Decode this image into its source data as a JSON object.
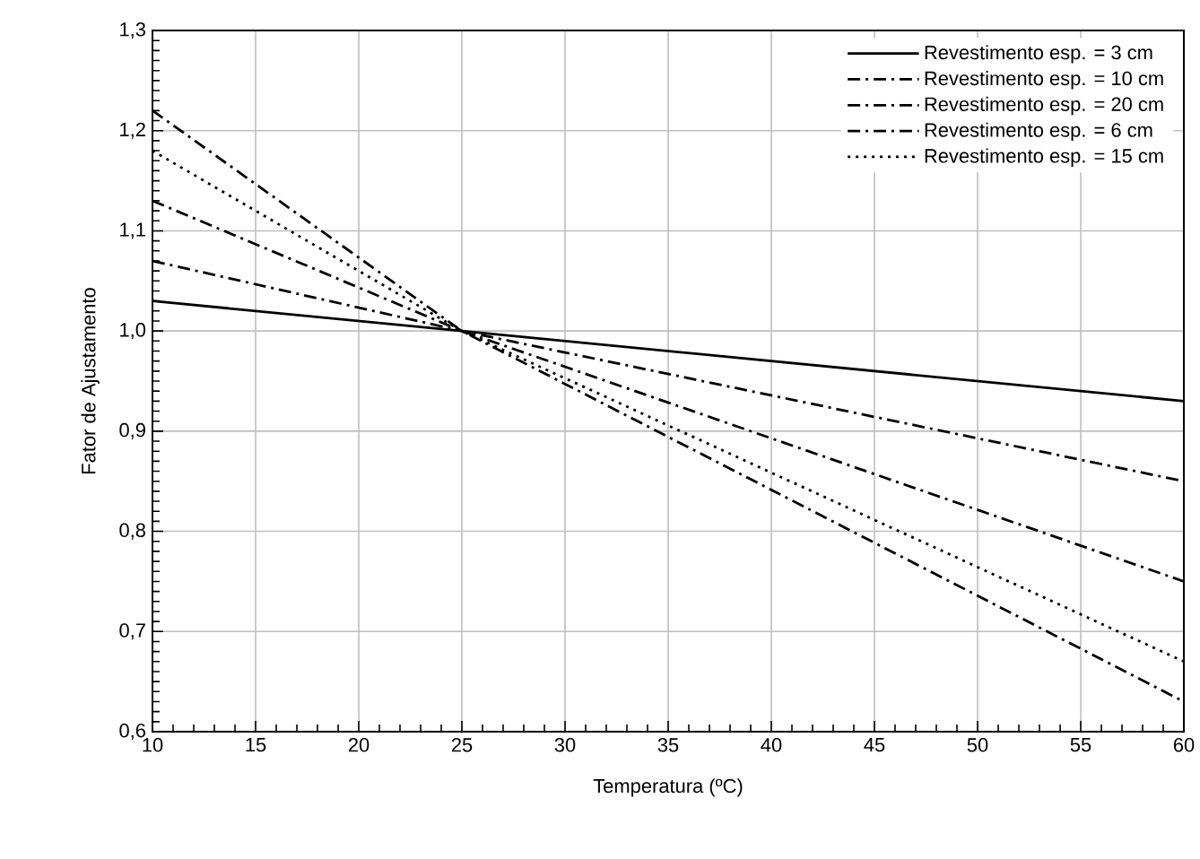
{
  "chart_data": {
    "type": "line",
    "xlabel": "Temperatura (ºC)",
    "ylabel": "Fator de Ajustamento",
    "x": [
      10,
      25,
      60
    ],
    "series": [
      {
        "name": "Revestimento esp. = 3 cm",
        "color": "#000000",
        "line_style": "solid",
        "values": [
          1.03,
          1.0,
          0.93
        ]
      },
      {
        "name": "Revestimento esp. = 10 cm",
        "color": "#000000",
        "line_style": "dashed",
        "values": [
          1.13,
          1.0,
          0.75
        ]
      },
      {
        "name": "Revestimento esp. = 20 cm",
        "color": "#000000",
        "line_style": "dashed",
        "values": [
          1.22,
          1.0,
          0.63
        ]
      },
      {
        "name": "Revestimento esp. = 6 cm",
        "color": "#000000",
        "line_style": "dashed",
        "values": [
          1.07,
          1.0,
          0.85
        ]
      },
      {
        "name": "Revestimento esp. = 15 cm",
        "color": "#000000",
        "line_style": "dotted",
        "values": [
          1.18,
          1.0,
          0.67
        ]
      }
    ],
    "xlim": [
      10,
      60
    ],
    "xticks": [
      10,
      15,
      20,
      25,
      30,
      35,
      40,
      45,
      50,
      55,
      60
    ],
    "ylim": [
      0.6,
      1.3
    ],
    "yticks": [
      {
        "value": 0.6,
        "label": "0,6"
      },
      {
        "value": 0.7,
        "label": "0,7"
      },
      {
        "value": 0.8,
        "label": "0,8"
      },
      {
        "value": 0.9,
        "label": "0,9"
      },
      {
        "value": 1.0,
        "label": "1,0"
      },
      {
        "value": 1.1,
        "label": "1,1"
      },
      {
        "value": 1.2,
        "label": "1,2"
      },
      {
        "value": 1.3,
        "label": "1,3"
      }
    ],
    "grid": true,
    "legend": "top right",
    "marker": "none"
  }
}
